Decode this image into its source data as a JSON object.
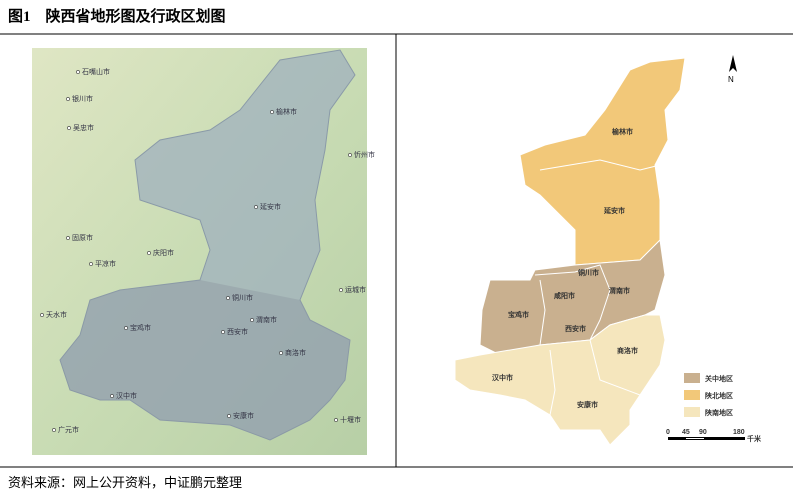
{
  "header": {
    "title": "图1　陕西省地形图及行政区划图"
  },
  "terrain_map": {
    "labels": [
      "石嘴山市",
      "银川市",
      "吴忠市",
      "榆林市",
      "忻州市",
      "固原市",
      "庆阳市",
      "平凉市",
      "延安市",
      "天水市",
      "宝鸡市",
      "铜川市",
      "渭南市",
      "西安市",
      "运城市",
      "商洛市",
      "汉中市",
      "安康市",
      "十堰市",
      "广元市"
    ]
  },
  "admin_map": {
    "labels": [
      "榆林市",
      "延安市",
      "铜川市",
      "咸阳市",
      "渭南市",
      "宝鸡市",
      "西安市",
      "商洛市",
      "汉中市",
      "安康市"
    ],
    "legend": [
      "关中地区",
      "陕北地区",
      "陕南地区"
    ],
    "scale": [
      "0",
      "45",
      "90",
      "180",
      "千米"
    ],
    "north": "N"
  },
  "footer": {
    "source": "资料来源：网上公开资料，中证鹏元整理"
  }
}
